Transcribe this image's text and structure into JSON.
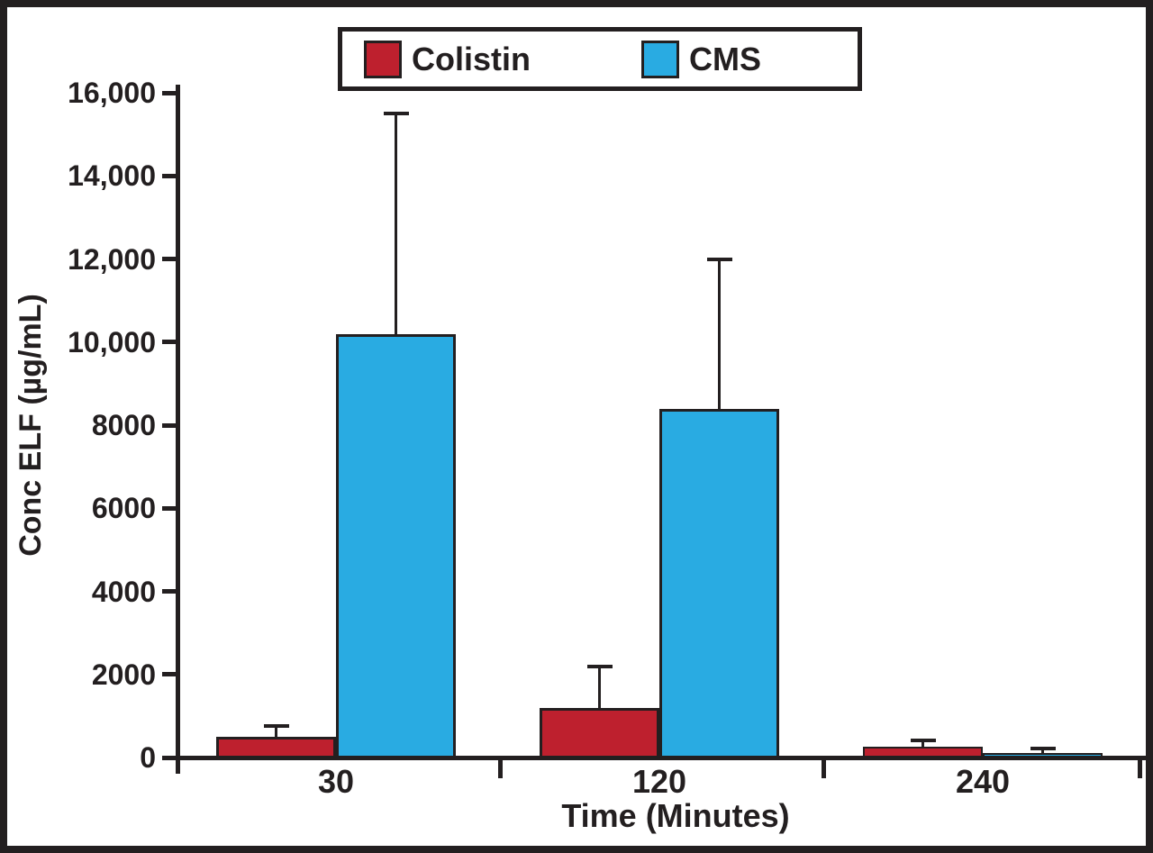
{
  "chart_data": {
    "type": "bar",
    "xlabel": "Time (Minutes)",
    "ylabel": "Conc ELF (µg/mL)",
    "categories": [
      "30",
      "120",
      "240"
    ],
    "series": [
      {
        "name": "Colistin",
        "color": "#be202e",
        "values": [
          500,
          1200,
          250
        ],
        "error_top": [
          750,
          2200,
          420
        ]
      },
      {
        "name": "CMS",
        "color": "#29abe2",
        "values": [
          10200,
          8400,
          100
        ],
        "error_top": [
          15500,
          12000,
          210
        ]
      }
    ],
    "ylim": [
      0,
      16000
    ],
    "ytick_interval": 2000,
    "ytick_labels": [
      "0",
      "2000",
      "4000",
      "6000",
      "8000",
      "10,000",
      "12,000",
      "14,000",
      "16,000"
    ],
    "grid": false,
    "legend_position": "top-center",
    "error_bars": "upper-only"
  },
  "legend": {
    "items": [
      {
        "label": "Colistin",
        "color": "#be202e"
      },
      {
        "label": "CMS",
        "color": "#29abe2"
      }
    ]
  },
  "colors": {
    "colistin": "#be202e",
    "cms": "#29abe2",
    "axis": "#231f20",
    "frame": "#231f20",
    "background": "#ffffff"
  }
}
